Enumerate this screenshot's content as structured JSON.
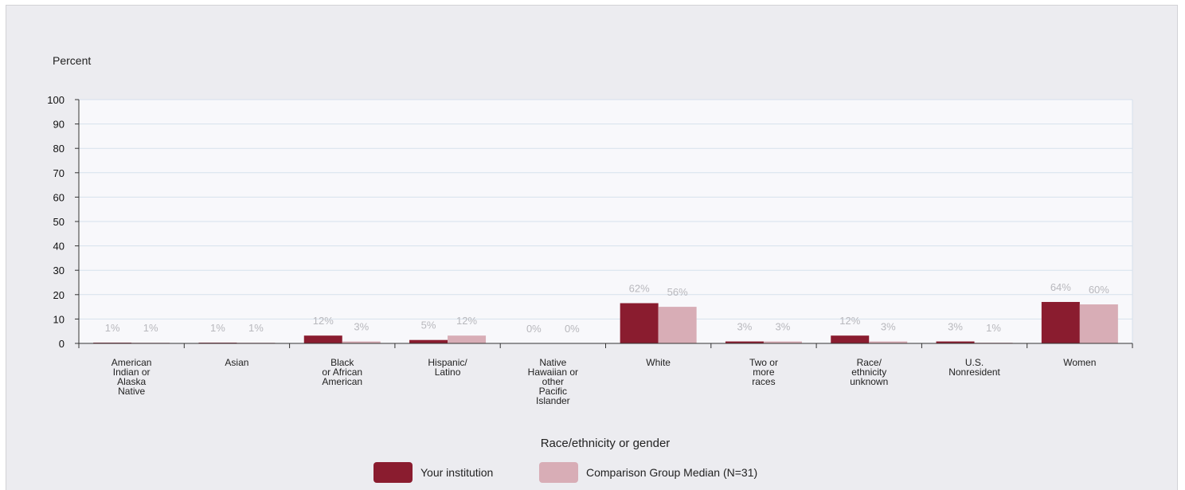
{
  "chart_data": {
    "type": "bar",
    "ylabel": "Percent",
    "xlabel": "Race/ethnicity or gender",
    "ylim": [
      0,
      100
    ],
    "yticks": [
      0,
      10,
      20,
      30,
      40,
      50,
      60,
      70,
      80,
      90,
      100
    ],
    "grid": true,
    "legend_position": "bottom",
    "categories": [
      [
        "American",
        "Indian or",
        "Alaska",
        "Native"
      ],
      [
        "Asian"
      ],
      [
        "Black",
        "or African",
        "American"
      ],
      [
        "Hispanic/",
        "Latino"
      ],
      [
        "Native",
        "Hawaiian or",
        "other",
        "Pacific",
        "Islander"
      ],
      [
        "White"
      ],
      [
        "Two or",
        "more",
        "races"
      ],
      [
        "Race/",
        "ethnicity",
        "unknown"
      ],
      [
        "U.S.",
        "Nonresident"
      ],
      [
        "Women"
      ]
    ],
    "series": [
      {
        "name": "Your institution",
        "color": "#8a1c2f",
        "values": [
          0.3,
          0.3,
          3.2,
          1.4,
          0,
          16.5,
          0.8,
          3.2,
          0.8,
          17.0
        ],
        "labels": [
          "1%",
          "1%",
          "12%",
          "5%",
          "0%",
          "62%",
          "3%",
          "12%",
          "3%",
          "64%"
        ]
      },
      {
        "name": "Comparison Group Median (N=31)",
        "color": "#d8adb6",
        "values": [
          0.3,
          0.3,
          0.8,
          3.2,
          0,
          15.0,
          0.8,
          0.8,
          0.3,
          16.0
        ],
        "labels": [
          "1%",
          "1%",
          "3%",
          "12%",
          "0%",
          "56%",
          "3%",
          "3%",
          "1%",
          "60%"
        ]
      }
    ]
  }
}
